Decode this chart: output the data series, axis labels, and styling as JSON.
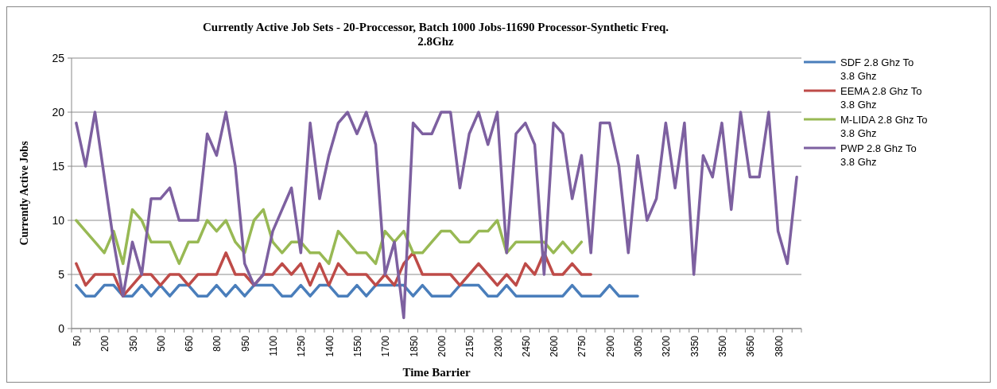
{
  "chart_data": {
    "type": "line",
    "title": "Currently Active Job Sets - 20-Proccessor, Batch 1000 Jobs-11690 Processor-Synthetic Freq. 2.8Ghz",
    "xlabel": "Time Barrier",
    "ylabel": "Currently Active Jobs",
    "categories": [
      "50",
      null,
      null,
      "200",
      null,
      null,
      "350",
      null,
      null,
      "500",
      null,
      null,
      "650",
      null,
      null,
      "800",
      null,
      null,
      "950",
      null,
      null,
      "1100",
      null,
      null,
      "1250",
      null,
      null,
      "1400",
      null,
      null,
      "1550",
      null,
      null,
      "1700",
      null,
      null,
      "1850",
      null,
      null,
      "2000",
      null,
      null,
      "2150",
      null,
      null,
      "2300",
      null,
      null,
      "2450",
      null,
      null,
      "2600",
      null,
      null,
      "2750",
      null,
      null,
      "2900",
      null,
      null,
      "3050",
      null,
      null,
      "3200",
      null,
      null,
      "3350",
      null,
      null,
      "3500",
      null,
      null,
      "3650",
      null,
      null,
      "3800",
      null,
      null
    ],
    "series": [
      {
        "name": "SDF 2.8 Ghz To 3.8 Ghz",
        "color": "#4a7ebb",
        "values": [
          4,
          3,
          3,
          4,
          4,
          3,
          3,
          4,
          3,
          4,
          3,
          4,
          4,
          3,
          3,
          4,
          3,
          4,
          3,
          4,
          4,
          4,
          3,
          3,
          4,
          3,
          4,
          4,
          3,
          3,
          4,
          3,
          4,
          4,
          4,
          4,
          3,
          4,
          3,
          3,
          3,
          4,
          4,
          4,
          3,
          3,
          4,
          3,
          3,
          3,
          3,
          3,
          3,
          4,
          3,
          3,
          3,
          4,
          3,
          3,
          3,
          null,
          null,
          null,
          null,
          null,
          null,
          null,
          null,
          null,
          null,
          null,
          null,
          null,
          null,
          null,
          null,
          null
        ]
      },
      {
        "name": "EEMA 2.8 Ghz To 3.8 Ghz",
        "color": "#be4b48",
        "values": [
          6,
          4,
          5,
          5,
          5,
          3,
          4,
          5,
          5,
          4,
          5,
          5,
          4,
          5,
          5,
          5,
          7,
          5,
          5,
          4,
          5,
          5,
          6,
          5,
          6,
          4,
          6,
          4,
          6,
          5,
          5,
          5,
          4,
          5,
          4,
          6,
          7,
          5,
          5,
          5,
          5,
          4,
          5,
          6,
          5,
          4,
          5,
          4,
          6,
          5,
          7,
          5,
          5,
          6,
          5,
          5,
          null,
          null,
          null,
          null,
          null,
          null,
          null,
          null,
          null,
          null,
          null,
          null,
          null,
          null,
          null,
          null,
          null,
          null,
          null,
          null,
          null,
          null
        ]
      },
      {
        "name": "M-LIDA 2.8 Ghz To 3.8 Ghz",
        "color": "#98b954",
        "values": [
          10,
          9,
          8,
          7,
          9,
          6,
          11,
          10,
          8,
          8,
          8,
          6,
          8,
          8,
          10,
          9,
          10,
          8,
          7,
          10,
          11,
          8,
          7,
          8,
          8,
          7,
          7,
          6,
          9,
          8,
          7,
          7,
          6,
          9,
          8,
          9,
          7,
          7,
          8,
          9,
          9,
          8,
          8,
          9,
          9,
          10,
          7,
          8,
          8,
          8,
          8,
          7,
          8,
          7,
          8,
          null,
          null,
          null,
          null,
          null,
          null,
          null,
          null,
          null,
          null,
          null,
          null,
          null,
          null,
          null,
          null,
          null,
          null,
          null,
          null,
          null,
          null,
          null
        ]
      },
      {
        "name": "PWP 2.8 Ghz To 3.8 Ghz",
        "color": "#7d60a0",
        "values": [
          19,
          15,
          20,
          14,
          8,
          3,
          8,
          5,
          12,
          12,
          13,
          10,
          10,
          10,
          18,
          16,
          20,
          15,
          6,
          4,
          5,
          9,
          11,
          13,
          7,
          19,
          12,
          16,
          19,
          20,
          18,
          20,
          17,
          5,
          8,
          1,
          19,
          18,
          18,
          20,
          20,
          13,
          18,
          20,
          17,
          20,
          7,
          18,
          19,
          17,
          5,
          19,
          18,
          12,
          16,
          7,
          19,
          19,
          15,
          7,
          16,
          10,
          12,
          19,
          13,
          19,
          5,
          16,
          14,
          19,
          11,
          20,
          14,
          14,
          20,
          9,
          6,
          14
        ]
      }
    ],
    "ylim": [
      0,
      25
    ],
    "yticks": [
      0,
      5,
      10,
      15,
      20,
      25
    ],
    "grid": "y",
    "legend": "right",
    "marker": "none",
    "line_style": "solid"
  }
}
